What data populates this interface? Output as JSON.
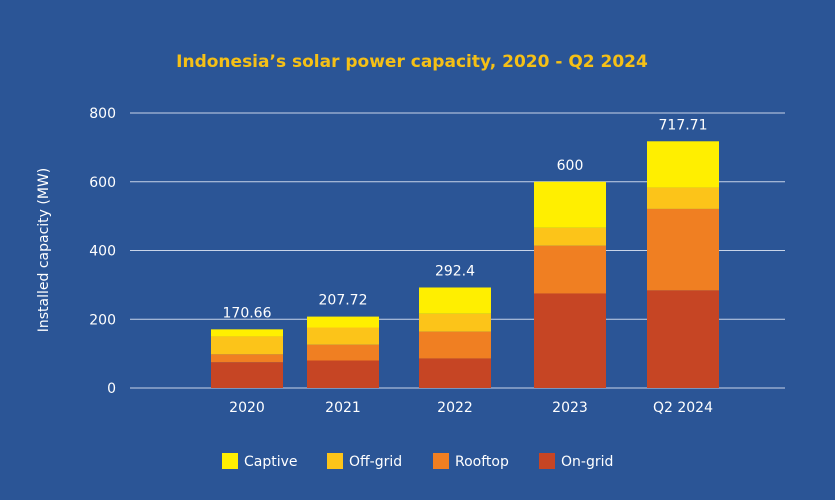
{
  "chart_data": {
    "type": "bar",
    "stacked": true,
    "title": "Indonesia’s solar power capacity, 2020 - Q2 2024",
    "xlabel": "",
    "ylabel": "Installed capacity (MW)",
    "ylim": [
      0,
      800
    ],
    "yticks": [
      0,
      200,
      400,
      600,
      800
    ],
    "grid": true,
    "legend_position": "bottom",
    "categories": [
      "2020",
      "2021",
      "2022",
      "2023",
      "Q2 2024"
    ],
    "totals": [
      "170.66",
      "207.72",
      "292.4",
      "600",
      "717.71"
    ],
    "series": [
      {
        "name": "On-grid",
        "color": "#c64524",
        "values": [
          75,
          80,
          86,
          275,
          284
        ]
      },
      {
        "name": "Rooftop",
        "color": "#f07f22",
        "values": [
          23,
          46,
          78,
          139,
          237
        ]
      },
      {
        "name": "Off-grid",
        "color": "#fcc419",
        "values": [
          52,
          50,
          52,
          52,
          62
        ]
      },
      {
        "name": "Captive",
        "color": "#ffef00",
        "values": [
          20.66,
          31.72,
          76.4,
          134,
          134.71
        ]
      }
    ],
    "legend_order": [
      "Captive",
      "Off-grid",
      "Rooftop",
      "On-grid"
    ]
  }
}
